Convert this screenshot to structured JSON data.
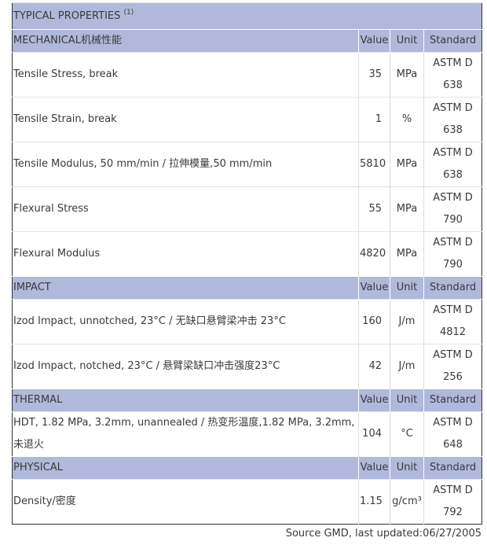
{
  "title": "TYPICAL PROPERTIES",
  "title_note": "(1)",
  "sections": [
    {
      "name": "MECHANICAL机械性能",
      "cols": [
        "Value",
        "Unit",
        "Standard"
      ],
      "rows": [
        {
          "property": "Tensile Stress, break",
          "value": "35",
          "unit": "MPa",
          "standard": [
            "ASTM D",
            "638"
          ]
        },
        {
          "property": "Tensile Strain, break",
          "value": "1",
          "unit": "%",
          "standard": [
            "ASTM D",
            "638"
          ]
        },
        {
          "property": "Tensile Modulus, 50 mm/min / 拉伸模量,50 mm/min",
          "value": "5810",
          "unit": "MPa",
          "standard": [
            "ASTM D",
            "638"
          ]
        },
        {
          "property": "Flexural Stress",
          "value": "55",
          "unit": "MPa",
          "standard": [
            "ASTM D",
            "790"
          ]
        },
        {
          "property": "Flexural Modulus",
          "value": "4820",
          "unit": "MPa",
          "standard": [
            "ASTM D",
            "790"
          ]
        }
      ]
    },
    {
      "name": "IMPACT",
      "cols": [
        "Value",
        "Unit",
        "Standard"
      ],
      "rows": [
        {
          "property": "Izod Impact, unnotched, 23°C / 无缺口悬臂梁冲击 23°C",
          "value": "160",
          "unit": "J/m",
          "standard": [
            "ASTM D",
            "4812"
          ]
        },
        {
          "property": "Izod Impact, notched, 23°C / 悬臂梁缺口冲击强度23°C",
          "value": "42",
          "unit": "J/m",
          "standard": [
            "ASTM D",
            "256"
          ]
        }
      ]
    },
    {
      "name": "THERMAL",
      "cols": [
        "Value",
        "Unit",
        "Standard"
      ],
      "rows": [
        {
          "property": "HDT, 1.82 MPa, 3.2mm, unannealed / 热变形温度,1.82 MPa, 3.2mm,未退火",
          "value": "104",
          "unit": "°C",
          "standard": [
            "ASTM D",
            "648"
          ]
        }
      ]
    },
    {
      "name": "PHYSICAL",
      "cols": [
        "Value",
        "Unit",
        "Standard"
      ],
      "rows": [
        {
          "property": "Density/密度",
          "value": "1.15",
          "unit": "g/cm³",
          "standard": [
            "ASTM D",
            "792"
          ]
        }
      ]
    }
  ],
  "footer": "Source GMD, last updated:06/27/2005",
  "colors": {
    "header_bg": "#b0b9db",
    "border": "#333333"
  }
}
